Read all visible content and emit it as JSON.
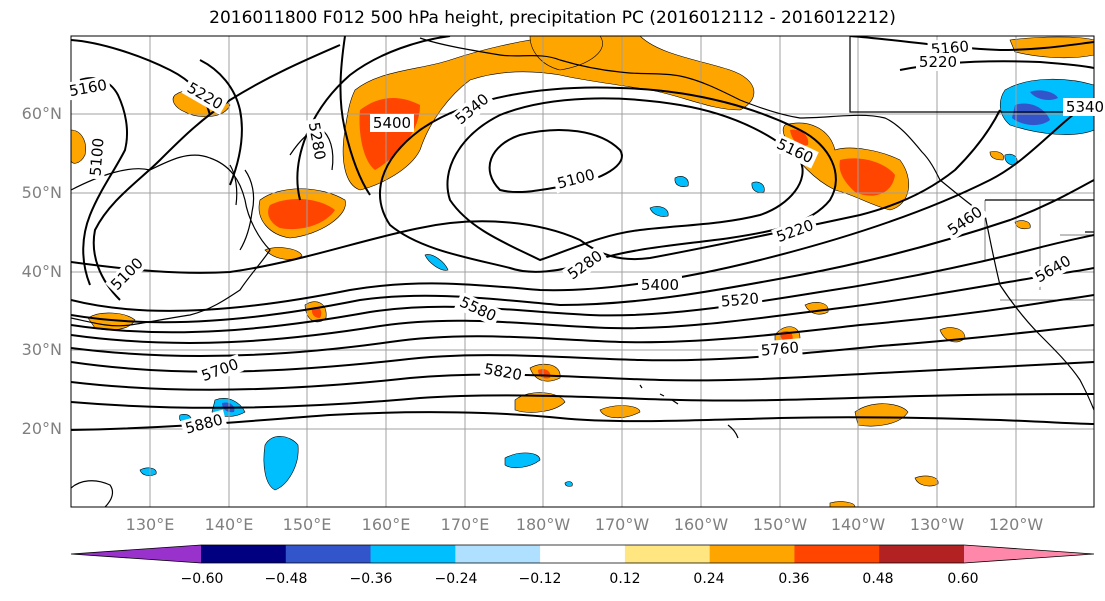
{
  "title": "2016011800 F012 500 hPa height, precipitation PC (2016012112 - 2016012212)",
  "lat_labels": [
    "60°N",
    "50°N",
    "40°N",
    "30°N",
    "20°N"
  ],
  "lon_labels": [
    "130°E",
    "140°E",
    "150°E",
    "160°E",
    "170°E",
    "180°W",
    "170°W",
    "160°W",
    "150°W",
    "140°W",
    "130°W",
    "120°W"
  ],
  "contour_labels": [
    "5160",
    "5220",
    "5280",
    "5340",
    "5400",
    "5100",
    "5160",
    "5220",
    "5280",
    "5400",
    "5460",
    "5520",
    "5580",
    "5640",
    "5700",
    "5760",
    "5820",
    "5880",
    "5100",
    "5100",
    "5160",
    "5220",
    "5340"
  ],
  "colorbar": {
    "ticks": [
      "−0.60",
      "−0.48",
      "−0.36",
      "−0.24",
      "−0.12",
      "0.12",
      "0.24",
      "0.36",
      "0.48",
      "0.60"
    ],
    "colors": [
      "#9932cc",
      "#000080",
      "#3355cc",
      "#00bfff",
      "#b0e0ff",
      "#ffffff",
      "#ffe680",
      "#ffa500",
      "#ff4500",
      "#b22222",
      "#ff88aa"
    ]
  }
}
